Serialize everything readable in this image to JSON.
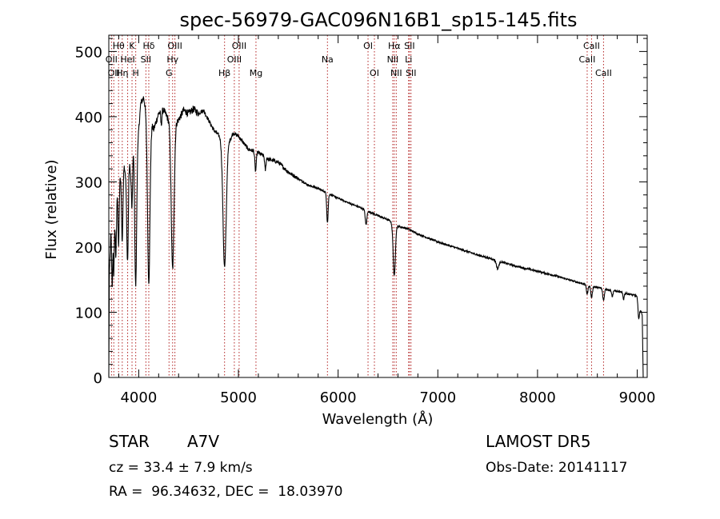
{
  "chart_data": {
    "type": "line",
    "title": "spec-56979-GAC096N16B1_sp15-145.fits",
    "xlabel": "Wavelength (Å)",
    "ylabel": "Flux (relative)",
    "xlim": [
      3700,
      9100
    ],
    "ylim": [
      0,
      525
    ],
    "x_ticks": [
      4000,
      5000,
      6000,
      7000,
      8000,
      9000
    ],
    "y_ticks": [
      0,
      100,
      200,
      300,
      400,
      500
    ],
    "grid": false,
    "line_color": "#000000",
    "marker_line_color": "#b22222",
    "spectrum": {
      "anchors": [
        [
          3700,
          0
        ],
        [
          3705,
          150
        ],
        [
          3720,
          220
        ],
        [
          3750,
          240
        ],
        [
          3780,
          290
        ],
        [
          3820,
          310
        ],
        [
          3850,
          330
        ],
        [
          3880,
          300
        ],
        [
          3900,
          345
        ],
        [
          3920,
          310
        ],
        [
          3940,
          355
        ],
        [
          3960,
          340
        ],
        [
          3990,
          360
        ],
        [
          4020,
          420
        ],
        [
          4050,
          430
        ],
        [
          4080,
          400
        ],
        [
          4120,
          395
        ],
        [
          4150,
          380
        ],
        [
          4200,
          405
        ],
        [
          4250,
          410
        ],
        [
          4300,
          395
        ],
        [
          4360,
          390
        ],
        [
          4400,
          395
        ],
        [
          4450,
          410
        ],
        [
          4500,
          405
        ],
        [
          4550,
          412
        ],
        [
          4600,
          405
        ],
        [
          4650,
          410
        ],
        [
          4700,
          395
        ],
        [
          4750,
          380
        ],
        [
          4800,
          372
        ],
        [
          4850,
          362
        ],
        [
          4880,
          355
        ],
        [
          4900,
          360
        ],
        [
          4950,
          375
        ],
        [
          5000,
          370
        ],
        [
          5100,
          350
        ],
        [
          5200,
          345
        ],
        [
          5300,
          335
        ],
        [
          5400,
          330
        ],
        [
          5500,
          315
        ],
        [
          5600,
          305
        ],
        [
          5700,
          295
        ],
        [
          5800,
          290
        ],
        [
          5900,
          282
        ],
        [
          6000,
          275
        ],
        [
          6100,
          268
        ],
        [
          6200,
          262
        ],
        [
          6300,
          255
        ],
        [
          6400,
          248
        ],
        [
          6500,
          242
        ],
        [
          6600,
          232
        ],
        [
          6700,
          228
        ],
        [
          6800,
          220
        ],
        [
          7000,
          208
        ],
        [
          7200,
          198
        ],
        [
          7400,
          188
        ],
        [
          7600,
          179
        ],
        [
          7800,
          170
        ],
        [
          8000,
          163
        ],
        [
          8200,
          155
        ],
        [
          8400,
          146
        ],
        [
          8600,
          138
        ],
        [
          8800,
          132
        ],
        [
          9000,
          125
        ],
        [
          9050,
          95
        ],
        [
          9060,
          0
        ]
      ],
      "absorption_dips": [
        {
          "x": 3734,
          "depth": 90,
          "width": 5
        },
        {
          "x": 3750,
          "depth": 80,
          "width": 5
        },
        {
          "x": 3771,
          "depth": 90,
          "width": 6
        },
        {
          "x": 3798,
          "depth": 95,
          "width": 6
        },
        {
          "x": 3835,
          "depth": 110,
          "width": 7
        },
        {
          "x": 3889,
          "depth": 140,
          "width": 8
        },
        {
          "x": 3933,
          "depth": 80,
          "width": 6
        },
        {
          "x": 3970,
          "depth": 205,
          "width": 9
        },
        {
          "x": 4101,
          "depth": 250,
          "width": 12
        },
        {
          "x": 4226,
          "depth": 20,
          "width": 5
        },
        {
          "x": 4340,
          "depth": 225,
          "width": 14
        },
        {
          "x": 4861,
          "depth": 190,
          "width": 16
        },
        {
          "x": 5172,
          "depth": 30,
          "width": 7
        },
        {
          "x": 5270,
          "depth": 20,
          "width": 6
        },
        {
          "x": 5893,
          "depth": 45,
          "width": 7
        },
        {
          "x": 6280,
          "depth": 22,
          "width": 8
        },
        {
          "x": 6563,
          "depth": 80,
          "width": 11
        },
        {
          "x": 7600,
          "depth": 12,
          "width": 12
        },
        {
          "x": 8498,
          "depth": 14,
          "width": 8
        },
        {
          "x": 8542,
          "depth": 18,
          "width": 8
        },
        {
          "x": 8662,
          "depth": 18,
          "width": 8
        },
        {
          "x": 8750,
          "depth": 10,
          "width": 6
        },
        {
          "x": 8863,
          "depth": 10,
          "width": 6
        },
        {
          "x": 9015,
          "depth": 25,
          "width": 8
        }
      ]
    },
    "line_markers": [
      {
        "x": 3727,
        "label": "OII",
        "row": 1
      },
      {
        "x": 3750,
        "label": "OII",
        "row": 2
      },
      {
        "x": 3798,
        "label": "Hθ",
        "row": 0
      },
      {
        "x": 3835,
        "label": "Hη",
        "row": 2
      },
      {
        "x": 3889,
        "label": "HeI",
        "row": 1
      },
      {
        "x": 3933,
        "label": "K",
        "row": 0
      },
      {
        "x": 3970,
        "label": "H",
        "row": 2
      },
      {
        "x": 4072,
        "label": "SII",
        "row": 1
      },
      {
        "x": 4101,
        "label": "Hδ",
        "row": 0
      },
      {
        "x": 4304,
        "label": "G",
        "row": 2
      },
      {
        "x": 4340,
        "label": "Hγ",
        "row": 1
      },
      {
        "x": 4363,
        "label": "OIII",
        "row": 0
      },
      {
        "x": 4861,
        "label": "Hβ",
        "row": 2
      },
      {
        "x": 4959,
        "label": "OIII",
        "row": 1
      },
      {
        "x": 5007,
        "label": "OIII",
        "row": 0
      },
      {
        "x": 5176,
        "label": "Mg",
        "row": 2
      },
      {
        "x": 5893,
        "label": "Na",
        "row": 1
      },
      {
        "x": 6300,
        "label": "OI",
        "row": 0
      },
      {
        "x": 6364,
        "label": "OI",
        "row": 2
      },
      {
        "x": 6548,
        "label": "NII",
        "row": 1
      },
      {
        "x": 6563,
        "label": "Hα",
        "row": 0
      },
      {
        "x": 6583,
        "label": "NII",
        "row": 2
      },
      {
        "x": 6707,
        "label": "Li",
        "row": 1
      },
      {
        "x": 6716,
        "label": "SII",
        "row": 0
      },
      {
        "x": 6731,
        "label": "SII",
        "row": 2
      },
      {
        "x": 8498,
        "label": "CaII",
        "row": 1
      },
      {
        "x": 8542,
        "label": "CaII",
        "row": 0
      },
      {
        "x": 8662,
        "label": "CaII",
        "row": 2
      }
    ]
  },
  "info": {
    "object_class": "STAR",
    "subclass": "A7V",
    "survey": "LAMOST DR5",
    "cz": "cz = 33.4 ± 7.9 km/s",
    "obs_date": "Obs-Date: 20141117",
    "coords": "RA =  96.34632, DEC =  18.03970"
  }
}
